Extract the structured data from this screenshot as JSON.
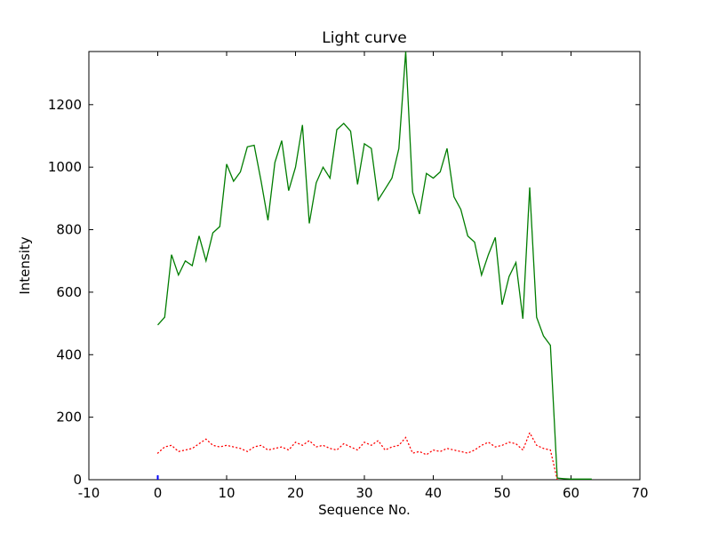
{
  "figure": {
    "background": "#ffffff",
    "axis_color": "#000000"
  },
  "chart_data": {
    "type": "line",
    "title": "Light curve",
    "xlabel": "Sequence No.",
    "ylabel": "Intensity",
    "xlim": [
      -10,
      70
    ],
    "ylim": [
      0,
      1370
    ],
    "xticks": [
      "-10",
      "0",
      "10",
      "20",
      "30",
      "40",
      "50",
      "60",
      "70"
    ],
    "xtick_values": [
      -10,
      0,
      10,
      20,
      30,
      40,
      50,
      60,
      70
    ],
    "yticks": [
      "0",
      "200",
      "400",
      "600",
      "800",
      "1000",
      "1200"
    ],
    "ytick_values": [
      0,
      200,
      400,
      600,
      800,
      1000,
      1200
    ],
    "grid": false,
    "legend": null,
    "series": [
      {
        "name": "light-curve-green",
        "color": "#007d00",
        "style": "solid",
        "width": 1.3,
        "x": [
          0,
          1,
          2,
          3,
          4,
          5,
          6,
          7,
          8,
          9,
          10,
          11,
          12,
          13,
          14,
          15,
          16,
          17,
          18,
          19,
          20,
          21,
          22,
          23,
          24,
          25,
          26,
          27,
          28,
          29,
          30,
          31,
          32,
          33,
          34,
          35,
          36,
          37,
          38,
          39,
          40,
          41,
          42,
          43,
          44,
          45,
          46,
          47,
          48,
          49,
          50,
          51,
          52,
          53,
          54,
          55,
          56,
          57,
          58,
          59,
          60,
          61,
          62,
          63
        ],
        "y": [
          495,
          520,
          720,
          655,
          700,
          685,
          780,
          700,
          790,
          810,
          1010,
          955,
          985,
          1065,
          1070,
          955,
          830,
          1015,
          1085,
          925,
          1000,
          1135,
          820,
          950,
          1000,
          965,
          1120,
          1140,
          1115,
          945,
          1075,
          1060,
          895,
          930,
          965,
          1060,
          1370,
          920,
          850,
          980,
          965,
          985,
          1060,
          905,
          865,
          780,
          760,
          655,
          720,
          775,
          560,
          650,
          695,
          515,
          935,
          520,
          460,
          430,
          5,
          3,
          2,
          2,
          2,
          2
        ]
      },
      {
        "name": "background-level-red",
        "color": "#ff0000",
        "style": "dotted",
        "width": 1.3,
        "x": [
          0,
          1,
          2,
          3,
          4,
          5,
          6,
          7,
          8,
          9,
          10,
          11,
          12,
          13,
          14,
          15,
          16,
          17,
          18,
          19,
          20,
          21,
          22,
          23,
          24,
          25,
          26,
          27,
          28,
          29,
          30,
          31,
          32,
          33,
          34,
          35,
          36,
          37,
          38,
          39,
          40,
          41,
          42,
          43,
          44,
          45,
          46,
          47,
          48,
          49,
          50,
          51,
          52,
          53,
          54,
          55,
          56,
          57,
          58
        ],
        "y": [
          85,
          105,
          110,
          90,
          95,
          100,
          115,
          130,
          110,
          105,
          110,
          105,
          100,
          90,
          105,
          110,
          95,
          100,
          105,
          95,
          120,
          110,
          125,
          105,
          110,
          100,
          95,
          115,
          105,
          95,
          120,
          110,
          125,
          95,
          105,
          110,
          135,
          85,
          90,
          80,
          95,
          90,
          100,
          95,
          90,
          85,
          95,
          110,
          120,
          105,
          110,
          120,
          115,
          95,
          150,
          110,
          100,
          95,
          0
        ]
      },
      {
        "name": "start-marker-blue",
        "color": "#0000ff",
        "style": "solid",
        "width": 2,
        "x": [
          0,
          0
        ],
        "y": [
          0,
          14
        ]
      }
    ]
  }
}
